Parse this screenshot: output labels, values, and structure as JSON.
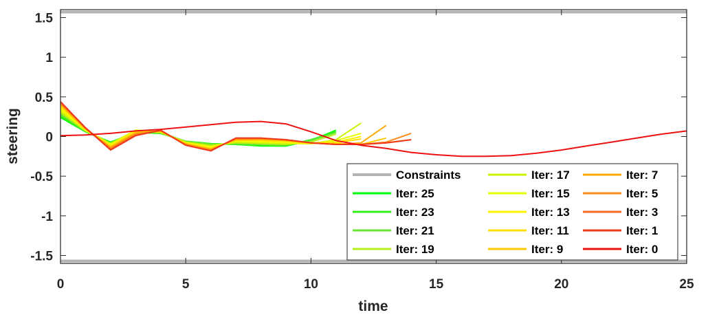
{
  "chart_data": {
    "type": "line",
    "xlabel": "time",
    "ylabel": "steering",
    "xlim": [
      0,
      25
    ],
    "ylim": [
      -1.6,
      1.6
    ],
    "xticks": [
      "0",
      "5",
      "10",
      "15",
      "20",
      "25"
    ],
    "yticks": [
      "-1.5",
      "-1",
      "-0.5",
      "0",
      "0.5",
      "1",
      "1.5"
    ],
    "grid": false,
    "legend_placement": "bottom-right",
    "legend_columns": 3,
    "constraints": {
      "name": "Constraints",
      "color": "#b3b3b3",
      "y_values": [
        1.57,
        -1.57
      ]
    },
    "series": [
      {
        "name": "Iter: 25",
        "color": "#00ff00",
        "x": [
          0,
          1,
          2,
          3,
          4,
          5,
          6,
          7,
          8,
          9,
          10,
          11
        ],
        "y": [
          0.24,
          0.06,
          -0.07,
          0.05,
          0.04,
          -0.06,
          -0.09,
          -0.1,
          -0.12,
          -0.12,
          -0.05,
          0.08
        ]
      },
      {
        "name": "Iter: 23",
        "color": "#33f01a",
        "x": [
          0,
          1,
          2,
          3,
          4,
          5,
          6,
          7,
          8,
          9,
          10,
          11
        ],
        "y": [
          0.26,
          0.06,
          -0.08,
          0.05,
          0.04,
          -0.06,
          -0.09,
          -0.1,
          -0.11,
          -0.11,
          -0.04,
          0.06
        ]
      },
      {
        "name": "Iter: 21",
        "color": "#66e633",
        "x": [
          0,
          1,
          2,
          3,
          4,
          5,
          6,
          7,
          8,
          9,
          10,
          11
        ],
        "y": [
          0.28,
          0.07,
          -0.08,
          0.06,
          0.05,
          -0.06,
          -0.1,
          -0.09,
          -0.1,
          -0.11,
          -0.05,
          0.05
        ]
      },
      {
        "name": "Iter: 19",
        "color": "#b3ef1a",
        "x": [
          0,
          1,
          2,
          3,
          4,
          5,
          6,
          7,
          8,
          9,
          10,
          11
        ],
        "y": [
          0.3,
          0.07,
          -0.09,
          0.07,
          0.05,
          -0.07,
          -0.11,
          -0.08,
          -0.09,
          -0.1,
          -0.07,
          0.03
        ]
      },
      {
        "name": "Iter: 17",
        "color": "#ccf000",
        "x": [
          0,
          1,
          2,
          3,
          4,
          5,
          6,
          7,
          8,
          9,
          10,
          11,
          12
        ],
        "y": [
          0.32,
          0.08,
          -0.09,
          0.08,
          0.05,
          -0.07,
          -0.12,
          -0.07,
          -0.08,
          -0.09,
          -0.09,
          -0.04,
          0.17
        ]
      },
      {
        "name": "Iter: 15",
        "color": "#e6ff00",
        "x": [
          0,
          1,
          2,
          3,
          4,
          5,
          6,
          7,
          8,
          9,
          10,
          11,
          12
        ],
        "y": [
          0.34,
          0.08,
          -0.1,
          0.08,
          0.06,
          -0.08,
          -0.13,
          -0.06,
          -0.07,
          -0.08,
          -0.09,
          -0.05,
          0.04
        ]
      },
      {
        "name": "Iter: 13",
        "color": "#fff200",
        "x": [
          0,
          1,
          2,
          3,
          4,
          5,
          6,
          7,
          8,
          9,
          10,
          11,
          12
        ],
        "y": [
          0.36,
          0.09,
          -0.11,
          0.07,
          0.06,
          -0.08,
          -0.14,
          -0.05,
          -0.06,
          -0.07,
          -0.09,
          -0.07,
          0.0
        ]
      },
      {
        "name": "Iter: 11",
        "color": "#ffe000",
        "x": [
          0,
          1,
          2,
          3,
          4,
          5,
          6,
          7,
          8,
          9,
          10,
          11,
          12
        ],
        "y": [
          0.38,
          0.09,
          -0.12,
          0.06,
          0.06,
          -0.09,
          -0.15,
          -0.05,
          -0.05,
          -0.06,
          -0.08,
          -0.08,
          -0.03
        ]
      },
      {
        "name": "Iter: 9",
        "color": "#ffc800",
        "x": [
          0,
          1,
          2,
          3,
          4,
          5,
          6,
          7,
          8,
          9,
          10,
          11,
          12,
          13
        ],
        "y": [
          0.4,
          0.1,
          -0.13,
          0.05,
          0.07,
          -0.09,
          -0.16,
          -0.04,
          -0.04,
          -0.05,
          -0.08,
          -0.09,
          -0.1,
          -0.02
        ]
      },
      {
        "name": "Iter: 7",
        "color": "#ffaa00",
        "x": [
          0,
          1,
          2,
          3,
          4,
          5,
          6,
          7,
          8,
          9,
          10,
          11,
          12,
          13
        ],
        "y": [
          0.41,
          0.1,
          -0.14,
          0.04,
          0.07,
          -0.1,
          -0.16,
          -0.04,
          -0.03,
          -0.05,
          -0.08,
          -0.1,
          -0.08,
          0.14
        ]
      },
      {
        "name": "Iter: 5",
        "color": "#ff8c1a",
        "x": [
          0,
          1,
          2,
          3,
          4,
          5,
          6,
          7,
          8,
          9,
          10,
          11,
          12,
          13,
          14
        ],
        "y": [
          0.42,
          0.1,
          -0.15,
          0.03,
          0.07,
          -0.1,
          -0.17,
          -0.03,
          -0.03,
          -0.04,
          -0.08,
          -0.1,
          -0.1,
          -0.07,
          0.04
        ]
      },
      {
        "name": "Iter: 3",
        "color": "#f26b26",
        "x": [
          0,
          1,
          2,
          3,
          4,
          5,
          6,
          7,
          8,
          9,
          10,
          11,
          12,
          13,
          14
        ],
        "y": [
          0.43,
          0.11,
          -0.16,
          0.02,
          0.08,
          -0.11,
          -0.18,
          -0.02,
          -0.02,
          -0.04,
          -0.08,
          -0.1,
          -0.1,
          -0.08,
          -0.04
        ]
      },
      {
        "name": "Iter: 1",
        "color": "#ee3a1a",
        "x": [
          0,
          1,
          2,
          3,
          4,
          5,
          6,
          7,
          8,
          9,
          10,
          11,
          12,
          13,
          14
        ],
        "y": [
          0.44,
          0.11,
          -0.17,
          0.01,
          0.08,
          -0.11,
          -0.18,
          -0.02,
          -0.02,
          -0.04,
          -0.08,
          -0.1,
          -0.1,
          -0.08,
          -0.04
        ]
      },
      {
        "name": "Iter: 0",
        "color": "#ee1111",
        "x": [
          0,
          1,
          2,
          3,
          4,
          5,
          6,
          7,
          8,
          9,
          10,
          11,
          12,
          13,
          14,
          15,
          16,
          17,
          18,
          19,
          20,
          21,
          22,
          23,
          24,
          25
        ],
        "y": [
          0.01,
          0.02,
          0.04,
          0.07,
          0.09,
          0.12,
          0.15,
          0.18,
          0.19,
          0.16,
          0.06,
          -0.05,
          -0.11,
          -0.15,
          -0.2,
          -0.23,
          -0.25,
          -0.25,
          -0.24,
          -0.21,
          -0.17,
          -0.12,
          -0.07,
          -0.02,
          0.03,
          0.07
        ]
      }
    ]
  }
}
